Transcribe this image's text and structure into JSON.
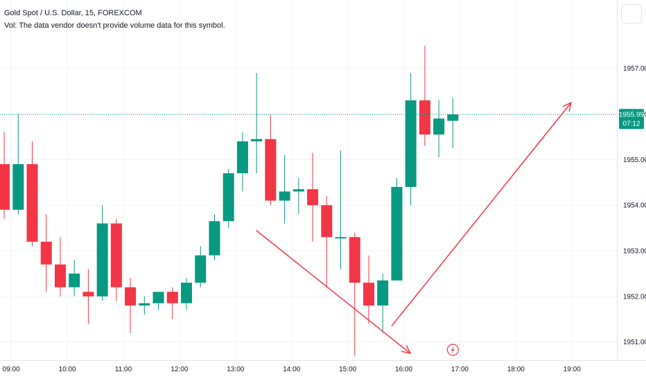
{
  "legend": {
    "symbol_line": "Gold Spot / U.S. Dollar, 15, FOREXCOM",
    "volume_line": "Vol: The data vendor doesn't provide volume data for this symbol."
  },
  "colors": {
    "up": "#089981",
    "down": "#f23645",
    "grid": "#f0f3fa",
    "price_line": "#089981",
    "arrow": "#f23645",
    "event_icon": "#f23645"
  },
  "current_price": {
    "price": 1955.99,
    "label": "1955.99",
    "countdown": "07:12"
  },
  "event_icon": "lightning-icon",
  "chart_data": {
    "type": "candlestick",
    "title": "",
    "interval": "15",
    "y_ticks": [
      "1951.00",
      "1952.00",
      "1953.00",
      "1954.00",
      "1955.00",
      "1956.00",
      "1957.00"
    ],
    "y_range": [
      1950.6,
      1958.5
    ],
    "x_ticks": [
      "09:00",
      "10:00",
      "11:00",
      "12:00",
      "13:00",
      "14:00",
      "15:00",
      "16:00",
      "17:00",
      "18:00",
      "19:00"
    ],
    "x_range": [
      "08:48",
      "19:48"
    ],
    "grid": true,
    "candles": [
      {
        "t": "08:45",
        "o": 1954.9,
        "h": 1955.6,
        "l": 1953.7,
        "c": 1953.9
      },
      {
        "t": "09:00",
        "o": 1953.9,
        "h": 1956.0,
        "l": 1953.8,
        "c": 1954.9
      },
      {
        "t": "09:15",
        "o": 1954.9,
        "h": 1955.4,
        "l": 1953.1,
        "c": 1953.2
      },
      {
        "t": "09:30",
        "o": 1953.2,
        "h": 1953.8,
        "l": 1952.1,
        "c": 1952.7
      },
      {
        "t": "09:45",
        "o": 1952.7,
        "h": 1953.3,
        "l": 1952.0,
        "c": 1952.2
      },
      {
        "t": "10:00",
        "o": 1952.2,
        "h": 1952.8,
        "l": 1952.0,
        "c": 1952.5
      },
      {
        "t": "10:15",
        "o": 1952.1,
        "h": 1952.6,
        "l": 1951.4,
        "c": 1952.0
      },
      {
        "t": "10:30",
        "o": 1952.0,
        "h": 1954.0,
        "l": 1951.9,
        "c": 1953.6
      },
      {
        "t": "10:45",
        "o": 1953.6,
        "h": 1953.7,
        "l": 1951.9,
        "c": 1952.2
      },
      {
        "t": "11:00",
        "o": 1952.2,
        "h": 1952.4,
        "l": 1951.2,
        "c": 1951.8
      },
      {
        "t": "11:15",
        "o": 1951.8,
        "h": 1952.0,
        "l": 1951.6,
        "c": 1951.85
      },
      {
        "t": "11:30",
        "o": 1951.85,
        "h": 1952.1,
        "l": 1951.7,
        "c": 1952.1
      },
      {
        "t": "11:45",
        "o": 1952.1,
        "h": 1952.2,
        "l": 1951.5,
        "c": 1951.85
      },
      {
        "t": "12:00",
        "o": 1951.85,
        "h": 1952.4,
        "l": 1951.7,
        "c": 1952.3
      },
      {
        "t": "12:15",
        "o": 1952.3,
        "h": 1953.1,
        "l": 1952.2,
        "c": 1952.9
      },
      {
        "t": "12:30",
        "o": 1952.9,
        "h": 1953.8,
        "l": 1952.8,
        "c": 1953.65
      },
      {
        "t": "12:45",
        "o": 1953.65,
        "h": 1954.8,
        "l": 1953.5,
        "c": 1954.7
      },
      {
        "t": "13:00",
        "o": 1954.7,
        "h": 1955.6,
        "l": 1954.3,
        "c": 1955.4
      },
      {
        "t": "13:15",
        "o": 1955.4,
        "h": 1956.9,
        "l": 1954.7,
        "c": 1955.45
      },
      {
        "t": "13:30",
        "o": 1955.45,
        "h": 1956.0,
        "l": 1954.0,
        "c": 1954.1
      },
      {
        "t": "13:45",
        "o": 1954.1,
        "h": 1955.1,
        "l": 1953.6,
        "c": 1954.3
      },
      {
        "t": "14:00",
        "o": 1954.3,
        "h": 1954.6,
        "l": 1953.8,
        "c": 1954.35
      },
      {
        "t": "14:15",
        "o": 1954.35,
        "h": 1955.15,
        "l": 1953.2,
        "c": 1954.0
      },
      {
        "t": "14:30",
        "o": 1954.0,
        "h": 1954.2,
        "l": 1952.2,
        "c": 1953.3
      },
      {
        "t": "14:45",
        "o": 1953.3,
        "h": 1955.2,
        "l": 1952.6,
        "c": 1953.3
      },
      {
        "t": "15:00",
        "o": 1953.3,
        "h": 1953.4,
        "l": 1950.7,
        "c": 1952.3
      },
      {
        "t": "15:15",
        "o": 1952.3,
        "h": 1952.9,
        "l": 1951.4,
        "c": 1951.8
      },
      {
        "t": "15:30",
        "o": 1951.8,
        "h": 1952.5,
        "l": 1951.2,
        "c": 1952.35
      },
      {
        "t": "15:45",
        "o": 1952.35,
        "h": 1954.6,
        "l": 1952.35,
        "c": 1954.4
      },
      {
        "t": "16:00",
        "o": 1954.4,
        "h": 1956.9,
        "l": 1954.0,
        "c": 1956.3
      },
      {
        "t": "16:15",
        "o": 1956.3,
        "h": 1957.5,
        "l": 1955.3,
        "c": 1955.55
      },
      {
        "t": "16:30",
        "o": 1955.55,
        "h": 1956.3,
        "l": 1955.05,
        "c": 1955.9
      },
      {
        "t": "16:45",
        "o": 1955.85,
        "h": 1956.35,
        "l": 1955.25,
        "c": 1955.99
      }
    ],
    "drawings": [
      {
        "type": "arrow",
        "from": {
          "t": "13:22",
          "p": 1953.45
        },
        "to": {
          "t": "16:07",
          "p": 1950.75
        }
      },
      {
        "type": "arrow",
        "from": {
          "t": "15:47",
          "p": 1951.35
        },
        "to": {
          "t": "18:59",
          "p": 1956.25
        }
      }
    ]
  }
}
